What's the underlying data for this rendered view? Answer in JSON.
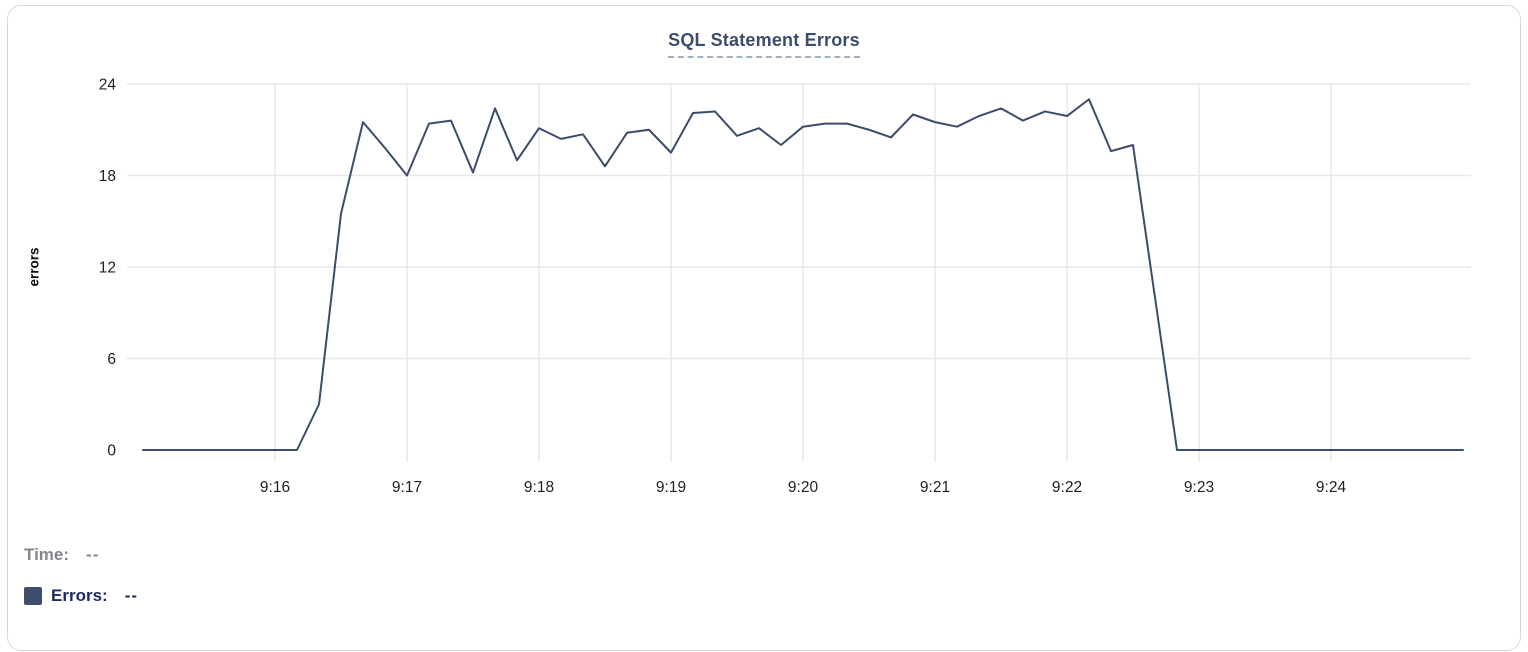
{
  "chart_data": {
    "type": "line",
    "title": "SQL Statement Errors",
    "ylabel": "errors",
    "y_ticks": [
      0,
      6,
      12,
      18,
      24
    ],
    "ylim": [
      0,
      24
    ],
    "x_tick_labels": [
      "9:16",
      "9:17",
      "9:18",
      "9:19",
      "9:20",
      "9:21",
      "9:22",
      "9:23",
      "9:24"
    ],
    "x_range": [
      "9:15:00",
      "9:25:00"
    ],
    "sample_interval_seconds": 10,
    "grid": "on",
    "legend_position": "below-left",
    "series": [
      {
        "name": "Errors",
        "color": "#3c4c6c",
        "values": [
          0,
          0,
          0,
          0,
          0,
          0,
          0,
          0,
          3,
          15.5,
          21.5,
          19.8,
          18,
          21.4,
          21.6,
          18.2,
          22.4,
          19,
          21.1,
          20.4,
          20.7,
          18.6,
          20.8,
          21,
          19.5,
          22.1,
          22.2,
          20.6,
          21.1,
          20,
          21.2,
          21.4,
          21.4,
          21,
          20.5,
          22,
          21.5,
          21.2,
          21.9,
          22.4,
          21.6,
          22.2,
          21.9,
          23,
          19.6,
          20,
          10,
          0,
          0,
          0,
          0,
          0,
          0,
          0,
          0,
          0,
          0,
          0,
          0,
          0,
          0
        ]
      }
    ]
  },
  "readout": {
    "time": {
      "label": "Time:",
      "value": "--"
    },
    "errors": {
      "label": "Errors:",
      "value": "--"
    }
  },
  "colors": {
    "line": "#3c4c6c",
    "title_text": "#3c4c6e",
    "underline_dash": "#a3aec6",
    "legend_swatch": "#3e4f6e",
    "errors_text": "#1b2a5e",
    "time_text": "#85868c",
    "gridline": "#e8e8ea",
    "tick_text": "#202124",
    "card_border": "#d8d8d8"
  }
}
